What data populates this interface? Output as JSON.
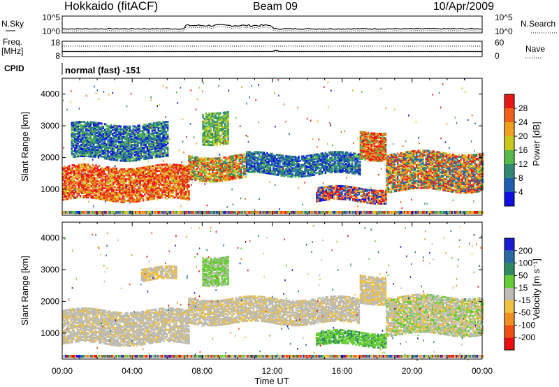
{
  "header": {
    "station": "Hokkaido (fitACF)",
    "beam": "Beam 09",
    "date": "10/Apr/2009"
  },
  "top_panel": {
    "left_label": "N.Sky",
    "right_label": "N.Search",
    "left_ticks": [
      "10^5",
      "10^0"
    ],
    "right_ticks": [
      "10^5",
      "10^0"
    ]
  },
  "freq_panel": {
    "left_label_1": "Freq.",
    "left_label_2": "[MHz]",
    "left_ticks": [
      "18",
      "8"
    ],
    "right_label": "Nave",
    "right_ticks": [
      "60",
      "0"
    ]
  },
  "cpid": {
    "label": "CPID",
    "value": "normal (fast) -151"
  },
  "x_axis": {
    "title": "Time UT",
    "ticks": [
      "00:00",
      "04:00",
      "08:00",
      "12:00",
      "16:00",
      "20:00",
      "00:00"
    ]
  },
  "chart_data": [
    {
      "type": "heatmap",
      "name": "power",
      "ylabel": "Slant Range [km]",
      "yticks": [
        "1000",
        "2000",
        "3000",
        "4000"
      ],
      "ylim": [
        180,
        4500
      ],
      "xlim_hours": [
        0,
        24
      ],
      "colorbar_label": "Power [dB]",
      "colorbar_ticks": [
        "4",
        "8",
        "12",
        "16",
        "20",
        "24",
        "28"
      ],
      "colors": [
        "#1010e0",
        "#1f5fb0",
        "#2e8a72",
        "#58b84a",
        "#c8c81a",
        "#f0a020",
        "#f06018",
        "#e81818"
      ]
    },
    {
      "type": "heatmap",
      "name": "velocity",
      "ylabel": "Slant Range [km]",
      "yticks": [
        "1000",
        "2000",
        "3000",
        "4000"
      ],
      "ylim": [
        180,
        4500
      ],
      "xlim_hours": [
        0,
        24
      ],
      "colorbar_label": "Velocity [m s⁻¹]",
      "colorbar_ticks": [
        "200",
        "100",
        "50",
        "15",
        "-15",
        "-50",
        "-100",
        "-200"
      ],
      "colors": [
        "#1a1ad0",
        "#2a6aa0",
        "#2e8a60",
        "#66cc33",
        "#bcbcb4",
        "#f0c040",
        "#f09020",
        "#f05010",
        "#e81010"
      ]
    }
  ]
}
